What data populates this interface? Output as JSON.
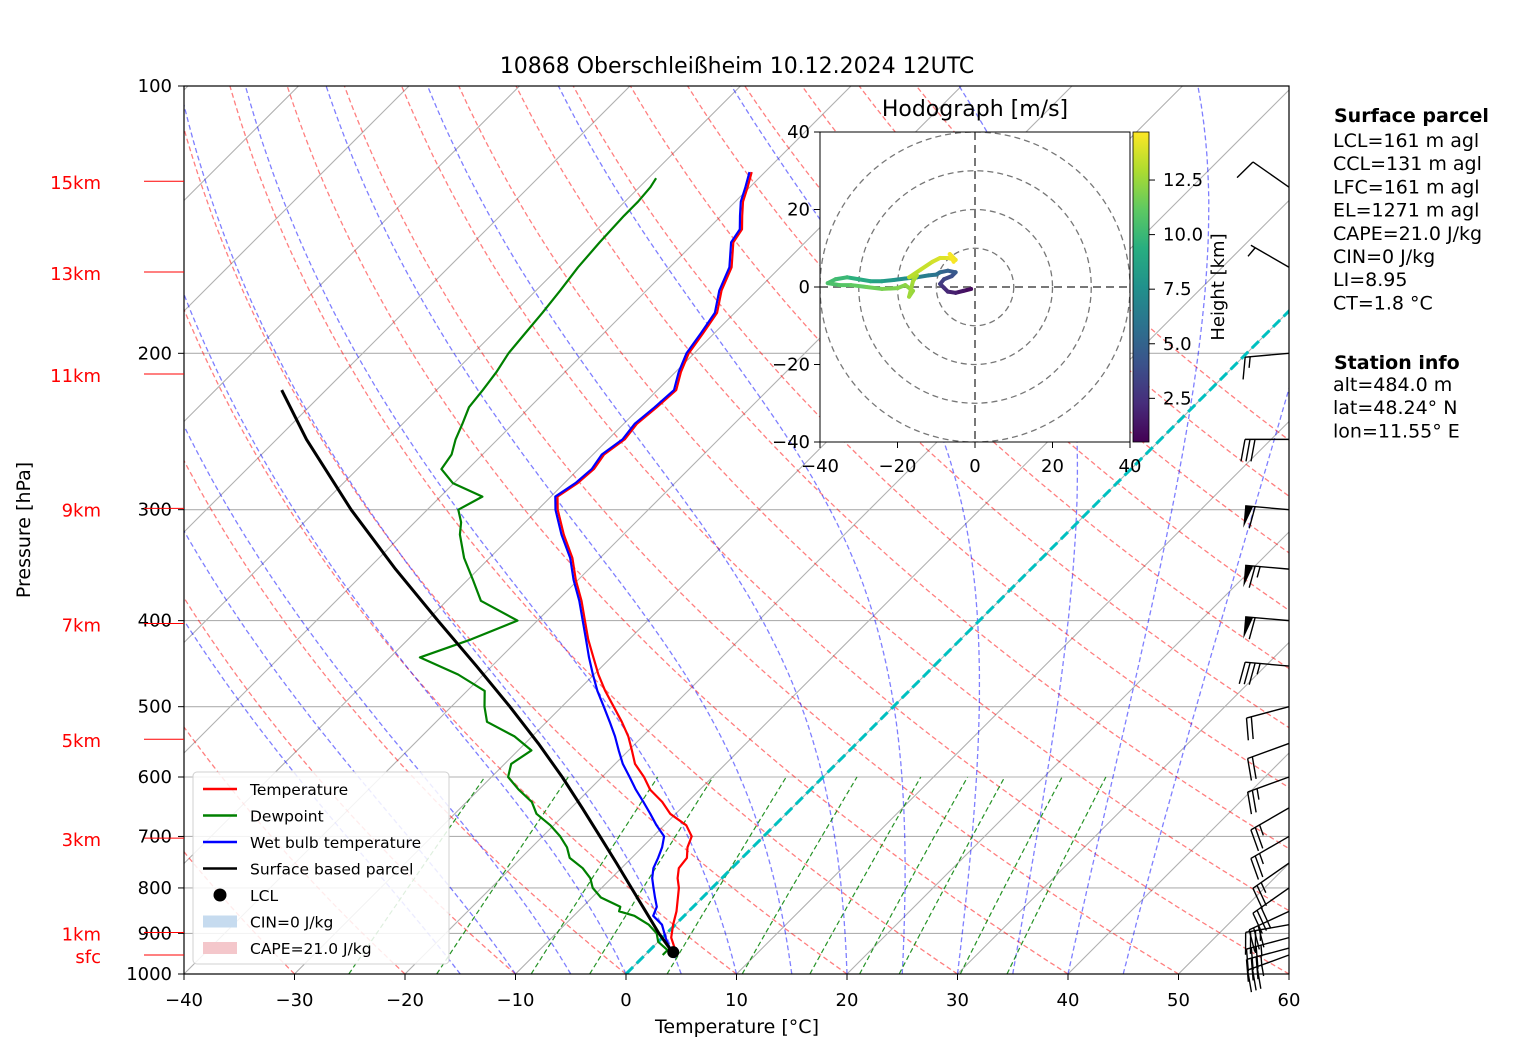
{
  "chart_data": {
    "type": "skew-t",
    "title": "10868 Oberschleißheim 10.12.2024 12UTC",
    "xlabel": "Temperature [°C]",
    "ylabel": "Pressure [hPa]",
    "xlim": [
      -40,
      60
    ],
    "ylim": [
      1000,
      100
    ],
    "skew": 45,
    "x_ticks": [
      -40,
      -30,
      -20,
      -10,
      0,
      10,
      20,
      30,
      40,
      50,
      60
    ],
    "x_tick_labels": [
      "−40",
      "−30",
      "−20",
      "−10",
      "0",
      "10",
      "20",
      "30",
      "40",
      "50",
      "60"
    ],
    "pressure_ticks": [
      100,
      200,
      300,
      400,
      500,
      600,
      700,
      800,
      900,
      1000
    ],
    "height_levels": [
      {
        "label": "15km",
        "p": 128
      },
      {
        "label": "13km",
        "p": 162
      },
      {
        "label": "11km",
        "p": 211
      },
      {
        "label": "9km",
        "p": 299
      },
      {
        "label": "7km",
        "p": 403
      },
      {
        "label": "5km",
        "p": 544
      },
      {
        "label": "3km",
        "p": 703
      },
      {
        "label": "1km",
        "p": 898
      },
      {
        "label": "sfc",
        "p": 952
      }
    ],
    "series": [
      {
        "name": "Temperature",
        "color": "#ff0000",
        "points": [
          [
            952,
            2.8
          ],
          [
            940,
            2.3
          ],
          [
            910,
            0.8
          ],
          [
            880,
            -0.2
          ],
          [
            850,
            -1.1
          ],
          [
            800,
            -3.0
          ],
          [
            780,
            -4.0
          ],
          [
            760,
            -4.8
          ],
          [
            740,
            -5.0
          ],
          [
            720,
            -5.9
          ],
          [
            700,
            -6.5
          ],
          [
            680,
            -8.0
          ],
          [
            660,
            -10.5
          ],
          [
            640,
            -12.3
          ],
          [
            620,
            -14.5
          ],
          [
            600,
            -16.2
          ],
          [
            580,
            -18.2
          ],
          [
            560,
            -19.7
          ],
          [
            540,
            -21.3
          ],
          [
            520,
            -23.2
          ],
          [
            500,
            -25.3
          ],
          [
            480,
            -27.5
          ],
          [
            460,
            -29.6
          ],
          [
            440,
            -31.6
          ],
          [
            420,
            -33.7
          ],
          [
            400,
            -35.7
          ],
          [
            380,
            -37.8
          ],
          [
            360,
            -40.2
          ],
          [
            340,
            -42.5
          ],
          [
            320,
            -45.4
          ],
          [
            300,
            -48.2
          ],
          [
            290,
            -49.4
          ],
          [
            280,
            -48.8
          ],
          [
            270,
            -48.6
          ],
          [
            260,
            -49.0
          ],
          [
            250,
            -48.5
          ],
          [
            240,
            -48.8
          ],
          [
            230,
            -48.5
          ],
          [
            220,
            -48.3
          ],
          [
            210,
            -49.5
          ],
          [
            200,
            -50.5
          ],
          [
            190,
            -51.0
          ],
          [
            180,
            -51.6
          ],
          [
            170,
            -53.2
          ],
          [
            160,
            -54.4
          ],
          [
            150,
            -56.5
          ],
          [
            145,
            -56.9
          ],
          [
            140,
            -58.1
          ],
          [
            135,
            -59.3
          ],
          [
            130,
            -60.2
          ],
          [
            125,
            -61.2
          ]
        ]
      },
      {
        "name": "Dewpoint",
        "color": "#008000",
        "points": [
          [
            952,
            1.6
          ],
          [
            940,
            1.6
          ],
          [
            920,
            0.0
          ],
          [
            900,
            -0.9
          ],
          [
            880,
            -2.4
          ],
          [
            860,
            -4.5
          ],
          [
            850,
            -6.3
          ],
          [
            840,
            -6.6
          ],
          [
            820,
            -9.2
          ],
          [
            800,
            -10.8
          ],
          [
            780,
            -11.9
          ],
          [
            760,
            -13.5
          ],
          [
            740,
            -15.6
          ],
          [
            720,
            -16.8
          ],
          [
            700,
            -18.4
          ],
          [
            680,
            -20.3
          ],
          [
            660,
            -22.6
          ],
          [
            640,
            -24.1
          ],
          [
            620,
            -26.4
          ],
          [
            600,
            -28.5
          ],
          [
            580,
            -29.4
          ],
          [
            560,
            -28.8
          ],
          [
            540,
            -31.6
          ],
          [
            520,
            -35.4
          ],
          [
            500,
            -37.0
          ],
          [
            480,
            -38.4
          ],
          [
            460,
            -42.3
          ],
          [
            440,
            -47.3
          ],
          [
            420,
            -44.3
          ],
          [
            400,
            -41.8
          ],
          [
            380,
            -46.9
          ],
          [
            360,
            -49.5
          ],
          [
            340,
            -52.3
          ],
          [
            320,
            -54.8
          ],
          [
            310,
            -55.8
          ],
          [
            300,
            -57.2
          ],
          [
            290,
            -56.2
          ],
          [
            280,
            -60.1
          ],
          [
            270,
            -62.4
          ],
          [
            260,
            -62.8
          ],
          [
            250,
            -63.8
          ],
          [
            240,
            -64.6
          ],
          [
            230,
            -65.5
          ],
          [
            220,
            -65.8
          ],
          [
            210,
            -66.2
          ],
          [
            200,
            -66.8
          ],
          [
            190,
            -67.1
          ],
          [
            180,
            -67.4
          ],
          [
            170,
            -67.8
          ],
          [
            160,
            -68.3
          ],
          [
            150,
            -68.6
          ],
          [
            140,
            -68.8
          ],
          [
            135,
            -68.8
          ],
          [
            130,
            -69.0
          ],
          [
            127,
            -69.3
          ]
        ]
      },
      {
        "name": "Wet bulb temperature",
        "color": "#0000ff",
        "points": [
          [
            952,
            2.2
          ],
          [
            940,
            1.9
          ],
          [
            920,
            0.8
          ],
          [
            900,
            -0.2
          ],
          [
            880,
            -1.2
          ],
          [
            860,
            -2.8
          ],
          [
            840,
            -3.3
          ],
          [
            820,
            -4.3
          ],
          [
            800,
            -5.3
          ],
          [
            780,
            -6.3
          ],
          [
            760,
            -7.1
          ],
          [
            740,
            -7.6
          ],
          [
            720,
            -8.2
          ],
          [
            700,
            -9.0
          ],
          [
            680,
            -10.7
          ],
          [
            660,
            -12.3
          ],
          [
            640,
            -14.0
          ],
          [
            620,
            -15.8
          ],
          [
            600,
            -17.5
          ],
          [
            580,
            -19.3
          ],
          [
            560,
            -20.9
          ],
          [
            540,
            -22.5
          ],
          [
            520,
            -24.3
          ],
          [
            500,
            -26.2
          ],
          [
            480,
            -28.2
          ],
          [
            460,
            -30.1
          ],
          [
            440,
            -32.0
          ],
          [
            420,
            -33.9
          ],
          [
            400,
            -35.9
          ],
          [
            380,
            -38.0
          ],
          [
            360,
            -40.4
          ],
          [
            340,
            -42.7
          ],
          [
            320,
            -45.6
          ],
          [
            300,
            -48.4
          ],
          [
            290,
            -49.6
          ],
          [
            280,
            -49.0
          ],
          [
            270,
            -48.8
          ],
          [
            260,
            -49.2
          ],
          [
            250,
            -48.7
          ],
          [
            240,
            -49.0
          ],
          [
            230,
            -48.7
          ],
          [
            220,
            -48.5
          ],
          [
            210,
            -49.7
          ],
          [
            200,
            -50.7
          ],
          [
            190,
            -51.2
          ],
          [
            180,
            -51.8
          ],
          [
            170,
            -53.4
          ],
          [
            160,
            -54.6
          ],
          [
            150,
            -56.7
          ],
          [
            145,
            -57.1
          ],
          [
            140,
            -58.3
          ],
          [
            135,
            -59.5
          ],
          [
            130,
            -60.4
          ],
          [
            125,
            -61.4
          ]
        ]
      },
      {
        "name": "Surface based parcel",
        "color": "#000000",
        "points": [
          [
            952,
            2.8
          ],
          [
            940,
            1.9
          ],
          [
            900,
            -0.7
          ],
          [
            850,
            -3.9
          ],
          [
            800,
            -7.3
          ],
          [
            750,
            -10.9
          ],
          [
            700,
            -14.8
          ],
          [
            650,
            -19.0
          ],
          [
            600,
            -23.6
          ],
          [
            550,
            -28.8
          ],
          [
            500,
            -34.7
          ],
          [
            450,
            -41.4
          ],
          [
            400,
            -49.0
          ],
          [
            350,
            -57.5
          ],
          [
            300,
            -66.9
          ],
          [
            250,
            -77.3
          ],
          [
            220,
            -84.0
          ]
        ]
      }
    ],
    "lcl": {
      "name": "LCL",
      "p": 945,
      "t": 2.3
    },
    "freezing_level_color": "#00c0c0",
    "legend": {
      "placement": "lower-left",
      "entries": [
        {
          "label": "Temperature",
          "kind": "line",
          "color": "#ff0000"
        },
        {
          "label": "Dewpoint",
          "kind": "line",
          "color": "#008000"
        },
        {
          "label": "Wet bulb temperature",
          "kind": "line",
          "color": "#0000ff"
        },
        {
          "label": "Surface based parcel",
          "kind": "line",
          "color": "#000000"
        },
        {
          "label": "LCL",
          "kind": "dot",
          "color": "#000000"
        },
        {
          "label": "CIN=0 J/kg",
          "kind": "patch",
          "color": "#c6dbef"
        },
        {
          "label": "CAPE=21.0 J/kg",
          "kind": "patch",
          "color": "#f4c7cb"
        }
      ]
    },
    "hodograph": {
      "title": "Hodograph [m/s]",
      "xlim": [
        -40,
        40
      ],
      "ylim": [
        -40,
        40
      ],
      "ticks": [
        -40,
        -20,
        0,
        20,
        40
      ],
      "tick_labels": [
        "−40",
        "−20",
        "0",
        "20",
        "40"
      ],
      "rings": [
        10,
        20,
        30,
        40
      ],
      "colorbar_label": "Height [km]",
      "colorbar_ticks": [
        2.5,
        5.0,
        7.5,
        10.0,
        12.5
      ],
      "colorbar_range": [
        0.5,
        14.7
      ],
      "points": [
        [
          -1,
          -0.5,
          0.5
        ],
        [
          -3,
          -1,
          0.9
        ],
        [
          -5,
          -1.5,
          1.3
        ],
        [
          -7,
          -1.2,
          1.7
        ],
        [
          -8,
          -0.2,
          2.1
        ],
        [
          -9,
          0.8,
          2.5
        ],
        [
          -8,
          2,
          3.0
        ],
        [
          -6,
          2.8,
          3.5
        ],
        [
          -5,
          3.8,
          4.0
        ],
        [
          -7,
          4.2,
          4.5
        ],
        [
          -9,
          3.8,
          5.0
        ],
        [
          -10,
          3.2,
          5.5
        ],
        [
          -12,
          3,
          6.0
        ],
        [
          -15,
          2.5,
          6.5
        ],
        [
          -18,
          2.2,
          7.0
        ],
        [
          -21,
          1.8,
          7.5
        ],
        [
          -24,
          1.5,
          8.0
        ],
        [
          -27,
          1.5,
          8.5
        ],
        [
          -30,
          2,
          9.0
        ],
        [
          -33,
          2.5,
          9.5
        ],
        [
          -36,
          2,
          10.0
        ],
        [
          -38,
          1,
          10.3
        ],
        [
          -35,
          0.5,
          10.6
        ],
        [
          -32,
          0.5,
          10.9
        ],
        [
          -28,
          0,
          11.2
        ],
        [
          -24,
          -0.5,
          11.5
        ],
        [
          -20,
          -0.3,
          11.8
        ],
        [
          -18,
          0.5,
          12.0
        ],
        [
          -16,
          -1,
          12.2
        ],
        [
          -17,
          -2.5,
          12.4
        ],
        [
          -16,
          1.5,
          12.6
        ],
        [
          -15,
          3,
          12.8
        ],
        [
          -17,
          2.5,
          13.0
        ],
        [
          -14,
          4.5,
          13.2
        ],
        [
          -11,
          6.5,
          13.5
        ],
        [
          -9,
          7.5,
          13.8
        ],
        [
          -7,
          7.5,
          14.0
        ],
        [
          -5,
          7,
          14.2
        ],
        [
          -6.5,
          8.5,
          14.4
        ],
        [
          -5.5,
          6.5,
          14.6
        ]
      ]
    },
    "wind_barbs": [
      {
        "p": 952,
        "speed": 35,
        "dir": 250
      },
      {
        "p": 935,
        "speed": 35,
        "dir": 255
      },
      {
        "p": 910,
        "speed": 35,
        "dir": 255
      },
      {
        "p": 880,
        "speed": 35,
        "dir": 260
      },
      {
        "p": 850,
        "speed": 30,
        "dir": 245
      },
      {
        "p": 800,
        "speed": 30,
        "dir": 235
      },
      {
        "p": 750,
        "speed": 25,
        "dir": 235
      },
      {
        "p": 700,
        "speed": 25,
        "dir": 240
      },
      {
        "p": 650,
        "speed": 25,
        "dir": 240
      },
      {
        "p": 600,
        "speed": 25,
        "dir": 250
      },
      {
        "p": 550,
        "speed": 20,
        "dir": 250
      },
      {
        "p": 500,
        "speed": 20,
        "dir": 255
      },
      {
        "p": 450,
        "speed": 35,
        "dir": 275
      },
      {
        "p": 400,
        "speed": 60,
        "dir": 275
      },
      {
        "p": 350,
        "speed": 65,
        "dir": 275
      },
      {
        "p": 300,
        "speed": 60,
        "dir": 275
      },
      {
        "p": 250,
        "speed": 30,
        "dir": 270
      },
      {
        "p": 200,
        "speed": 15,
        "dir": 265
      },
      {
        "p": 160,
        "speed": 5,
        "dir": 300
      },
      {
        "p": 130,
        "speed": 10,
        "dir": 305
      }
    ]
  },
  "surface_parcel": {
    "heading": "Surface parcel",
    "lines": [
      "LCL=161 m agl",
      "CCL=131 m agl",
      "LFC=161 m agl",
      "EL=1271 m agl",
      "CAPE=21.0 J/kg",
      "CIN=0 J/kg",
      "LI=8.95",
      "CT=1.8 °C"
    ]
  },
  "station_info": {
    "heading": "Station info",
    "lines": [
      "alt=484.0 m",
      "lat=48.24° N",
      "lon=11.55° E"
    ]
  }
}
